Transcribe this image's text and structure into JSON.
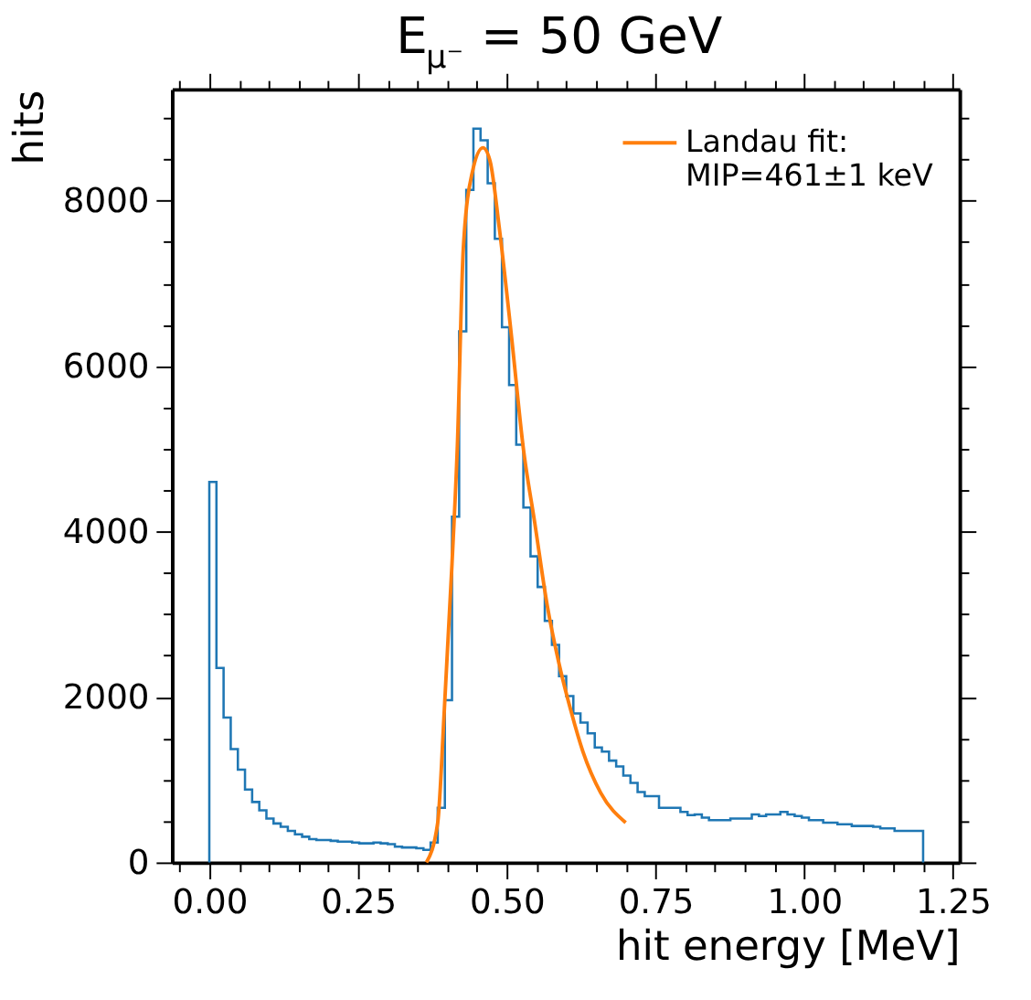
{
  "chart_data": {
    "type": "histogram",
    "title": "E$_{μ⁻}$ = 50 GeV",
    "xlabel": "hit energy [MeV]",
    "ylabel": "hits",
    "bins": [
      0,
      0.012,
      0.024,
      0.036,
      0.048,
      0.06,
      0.072,
      0.084,
      0.096,
      0.108,
      0.12,
      0.132,
      0.144,
      0.156,
      0.168,
      0.18,
      0.192,
      0.204,
      0.216,
      0.228,
      0.24,
      0.252,
      0.264,
      0.276,
      0.288,
      0.3,
      0.312,
      0.324,
      0.336,
      0.348,
      0.36,
      0.372,
      0.384,
      0.396,
      0.408,
      0.42,
      0.432,
      0.444,
      0.456,
      0.468,
      0.48,
      0.492,
      0.504,
      0.516,
      0.528,
      0.54,
      0.552,
      0.564,
      0.576,
      0.588,
      0.6,
      0.612,
      0.624,
      0.636,
      0.648,
      0.66,
      0.672,
      0.684,
      0.696,
      0.708,
      0.72,
      0.732,
      0.744,
      0.756,
      0.768,
      0.78,
      0.792,
      0.804,
      0.816,
      0.828,
      0.84,
      0.852,
      0.864,
      0.876,
      0.888,
      0.9,
      0.912,
      0.924,
      0.936,
      0.948,
      0.96,
      0.972,
      0.984,
      0.996,
      1.008,
      1.02,
      1.032,
      1.044,
      1.056,
      1.068,
      1.08,
      1.092,
      1.104,
      1.116,
      1.128,
      1.14,
      1.152,
      1.164,
      1.176,
      1.188,
      1.2
    ],
    "series": [
      {
        "type": "histogram",
        "color": "#1f77b4",
        "values": [
          4600,
          2350,
          1750,
          1370,
          1120,
          880,
          730,
          630,
          530,
          470,
          430,
          380,
          340,
          310,
          280,
          270,
          270,
          260,
          250,
          250,
          240,
          230,
          230,
          240,
          230,
          220,
          190,
          180,
          180,
          170,
          150,
          240,
          660,
          1960,
          4180,
          6420,
          8130,
          8870,
          8730,
          8210,
          7540,
          6470,
          5770,
          5050,
          4290,
          3700,
          3330,
          2920,
          2630,
          2250,
          2010,
          1800,
          1690,
          1560,
          1390,
          1340,
          1230,
          1160,
          1050,
          960,
          850,
          800,
          800,
          660,
          660,
          660,
          610,
          570,
          580,
          540,
          510,
          510,
          510,
          530,
          530,
          530,
          580,
          560,
          580,
          580,
          610,
          580,
          560,
          540,
          510,
          510,
          480,
          480,
          460,
          460,
          440,
          440,
          440,
          430,
          410,
          410,
          380,
          380,
          380,
          380
        ]
      },
      {
        "type": "line",
        "name": "Landau fit:\nMIP=461±1 keV",
        "color": "#ff7f0e",
        "x": [
          0.365,
          0.384,
          0.395,
          0.408,
          0.417,
          0.427,
          0.442,
          0.46,
          0.472,
          0.487,
          0.508,
          0.528,
          0.547,
          0.568,
          0.588,
          0.608,
          0.628,
          0.658,
          0.7
        ],
        "values": [
          0,
          480,
          1830,
          3610,
          5030,
          7420,
          8340,
          8640,
          8480,
          7700,
          6360,
          5000,
          4110,
          3110,
          2400,
          1830,
          1340,
          840,
          480
        ]
      }
    ],
    "xlim": [
      -0.063,
      1.261
    ],
    "ylim": [
      0,
      9350
    ],
    "xticks": [
      {
        "value": -0.05,
        "label": null
      },
      {
        "value": 0,
        "label": "0.00"
      },
      {
        "value": 0.05,
        "label": null
      },
      {
        "value": 0.1,
        "label": null
      },
      {
        "value": 0.15,
        "label": null
      },
      {
        "value": 0.2,
        "label": null
      },
      {
        "value": 0.25,
        "label": "0.25"
      },
      {
        "value": 0.3,
        "label": null
      },
      {
        "value": 0.35,
        "label": null
      },
      {
        "value": 0.4,
        "label": null
      },
      {
        "value": 0.45,
        "label": null
      },
      {
        "value": 0.5,
        "label": "0.50"
      },
      {
        "value": 0.55,
        "label": null
      },
      {
        "value": 0.6,
        "label": null
      },
      {
        "value": 0.65,
        "label": null
      },
      {
        "value": 0.7,
        "label": null
      },
      {
        "value": 0.75,
        "label": "0.75"
      },
      {
        "value": 0.8,
        "label": null
      },
      {
        "value": 0.85,
        "label": null
      },
      {
        "value": 0.9,
        "label": null
      },
      {
        "value": 0.95,
        "label": null
      },
      {
        "value": 1.0,
        "label": "1.00"
      },
      {
        "value": 1.05,
        "label": null
      },
      {
        "value": 1.1,
        "label": null
      },
      {
        "value": 1.15,
        "label": null
      },
      {
        "value": 1.2,
        "label": null
      },
      {
        "value": 1.25,
        "label": "1.25"
      }
    ],
    "yticks": [
      0,
      {
        "value": 500,
        "label": null
      },
      {
        "value": 1000,
        "label": null
      },
      {
        "value": 1500,
        "label": null
      },
      2000,
      {
        "value": 2500,
        "label": null
      },
      {
        "value": 3000,
        "label": null
      },
      {
        "value": 3500,
        "label": null
      },
      4000,
      {
        "value": 4500,
        "label": null
      },
      {
        "value": 5000,
        "label": null
      },
      {
        "value": 5500,
        "label": null
      },
      6000,
      {
        "value": 6500,
        "label": null
      },
      {
        "value": 7000,
        "label": null
      },
      {
        "value": 7500,
        "label": null
      },
      8000,
      {
        "value": 8500,
        "label": null
      },
      {
        "value": 9000,
        "label": null
      }
    ],
    "grid": false,
    "legend": "top right",
    "marker": "none",
    "line_style": "solid"
  }
}
